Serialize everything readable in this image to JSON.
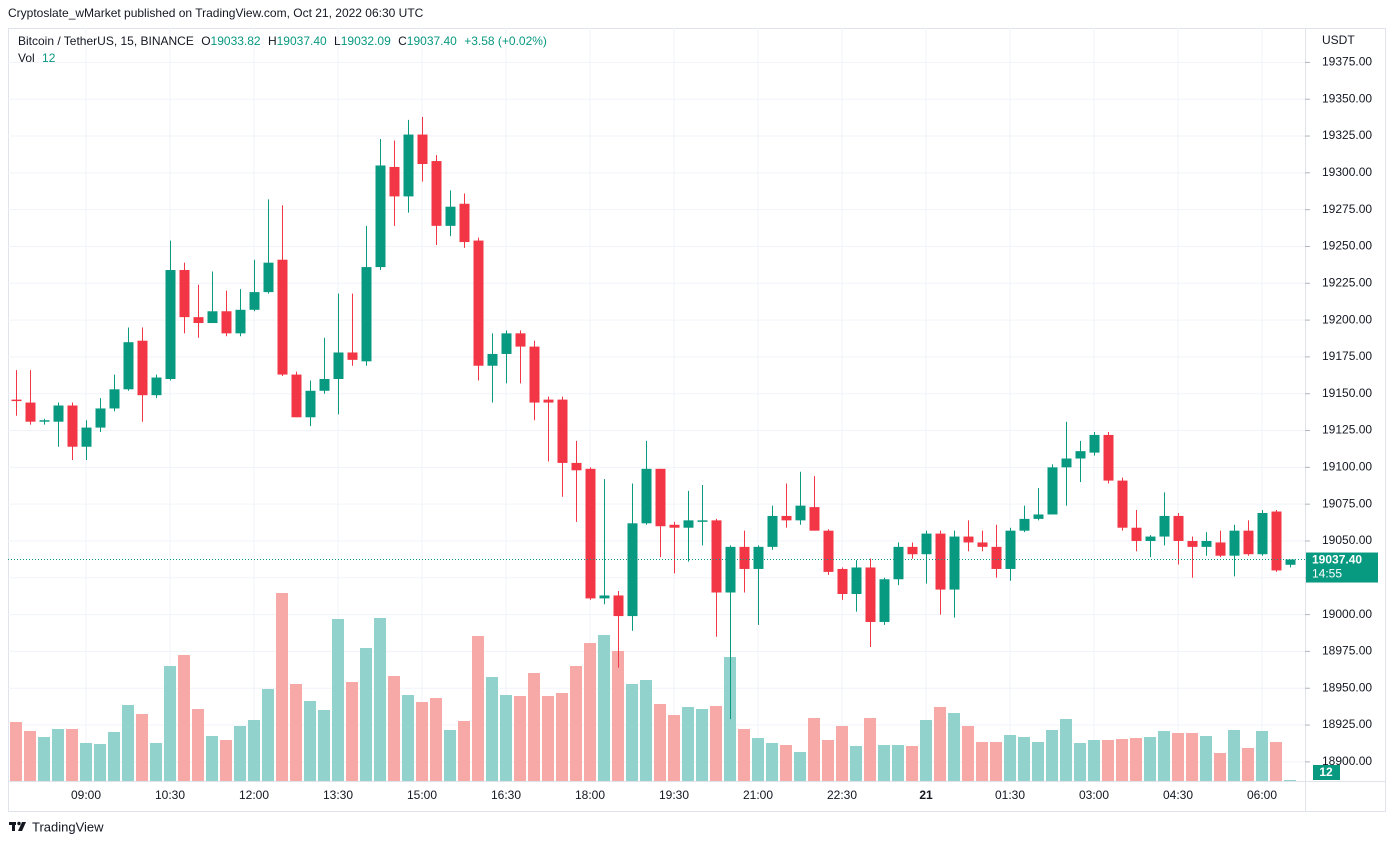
{
  "chart_data": {
    "type": "candlestick",
    "caption": "Cryptoslate_wMarket published on TradingView.com, Oct 21, 2022 06:30 UTC",
    "symbol": "Bitcoin / TetherUS, 15, BINANCE",
    "ohlc_header": [
      {
        "key": "O",
        "value_label": "19033.82"
      },
      {
        "key": "H",
        "value_label": "19037.40"
      },
      {
        "key": "L",
        "value_label": "19032.09"
      },
      {
        "key": "C",
        "value_label": "19037.40"
      }
    ],
    "change": "+3.58 (+0.02%)",
    "volume_label": "Vol",
    "currency": "USDT",
    "countdown": "14:55",
    "brand": "TradingView",
    "up_color": "#089981",
    "down_color": "#f23645",
    "volume_up_color": "#92d2cc",
    "volume_down_color": "#f7a9a7",
    "grid": true,
    "categories": [
      null,
      null,
      null,
      null,
      null,
      "09:00",
      null,
      null,
      null,
      null,
      null,
      "10:30",
      null,
      null,
      null,
      null,
      null,
      "12:00",
      null,
      null,
      null,
      null,
      null,
      "13:30",
      null,
      null,
      null,
      null,
      null,
      "15:00",
      null,
      null,
      null,
      null,
      null,
      "16:30",
      null,
      null,
      null,
      null,
      null,
      "18:00",
      null,
      null,
      null,
      null,
      null,
      "19:30",
      null,
      null,
      null,
      null,
      null,
      "21:00",
      null,
      null,
      null,
      null,
      null,
      "22:30",
      null,
      null,
      null,
      null,
      null,
      "21",
      null,
      null,
      null,
      null,
      null,
      "01:30",
      null,
      null,
      null,
      null,
      null,
      "03:00",
      null,
      null,
      null,
      null,
      null,
      "04:30",
      null,
      null,
      null,
      null,
      null,
      "06:00",
      null,
      null
    ],
    "open": [
      19146,
      19144,
      19131,
      19131,
      19142,
      19114,
      19127,
      19140,
      19153,
      19186,
      19149,
      19160,
      19234,
      19202,
      19198,
      19206,
      19191,
      19207,
      19219,
      19241,
      19163,
      19134,
      19152,
      19160,
      19178,
      19172,
      19236,
      19304,
      19284,
      19326,
      19308,
      19264,
      19279,
      19254,
      19169,
      19177,
      19191,
      19182,
      19146,
      19146,
      19103,
      19099,
      19011,
      19013,
      18999,
      19062,
      19099,
      19061,
      19059,
      19063,
      19064,
      19015,
      19046,
      19031,
      19046,
      19067,
      19064,
      19073,
      19057,
      19031,
      19014,
      19032,
      18995,
      19024,
      19046,
      19041,
      19055,
      19017,
      19053,
      19049,
      19046,
      19031,
      19057,
      19065,
      19068,
      19100,
      19106,
      19110,
      19122,
      19091,
      19059,
      19050,
      19053,
      19067,
      19050,
      19046,
      19049,
      19040,
      19057,
      19041,
      19070,
      19033.82
    ],
    "high": [
      19166,
      19166,
      19133,
      19144,
      19144,
      19132,
      19147,
      19163,
      19195,
      19195,
      19163,
      19254,
      19239,
      19224,
      19233,
      19220,
      19221,
      19241,
      19282,
      19278,
      19165,
      19159,
      19188,
      19218,
      19218,
      19264,
      19323,
      19322,
      19336,
      19338,
      19312,
      19288,
      19286,
      19256,
      19191,
      19193,
      19193,
      19186,
      19148,
      19148,
      19118,
      19100,
      19092,
      19016,
      19089,
      19118,
      19099,
      19063,
      19084,
      19088,
      19065,
      19047,
      19057,
      19047,
      19074,
      19089,
      19097,
      19094,
      19058,
      19032,
      19037,
      19038,
      19025,
      19049,
      19049,
      19057,
      19057,
      19057,
      19064,
      19057,
      19061,
      19059,
      19074,
      19086,
      19102,
      19131,
      19118,
      19124,
      19124,
      19093,
      19071,
      19054,
      19083,
      19069,
      19053,
      19056,
      19057,
      19061,
      19064,
      19071,
      19071,
      19037.4
    ],
    "low": [
      19135,
      19129,
      19129,
      19114,
      19105,
      19105,
      19124,
      19138,
      19152,
      19131,
      19147,
      19159,
      19191,
      19188,
      19198,
      19189,
      19189,
      19206,
      19218,
      19162,
      19134,
      19128,
      19150,
      19136,
      19169,
      19169,
      19234,
      19264,
      19273,
      19294,
      19251,
      19257,
      19249,
      19159,
      19144,
      19157,
      19157,
      19132,
      19104,
      19080,
      19063,
      19010,
      19007,
      18964,
      18989,
      19061,
      19039,
      19028,
      19036,
      19047,
      18985,
      18929,
      19015,
      18993,
      19044,
      19059,
      19061,
      19057,
      19027,
      19010,
      19002,
      18978,
      18993,
      19020,
      19038,
      19021,
      19000,
      18998,
      19043,
      19043,
      19025,
      19023,
      19056,
      19064,
      19068,
      19074,
      19090,
      19108,
      19089,
      19057,
      19043,
      19039,
      19047,
      19034,
      19025,
      19040,
      19039,
      19026,
      19040,
      19040,
      19029,
      19032.09
    ],
    "close": [
      19145,
      19131,
      19132,
      19142,
      19114,
      19127,
      19140,
      19153,
      19185,
      19149,
      19161,
      19234,
      19202,
      19198,
      19206,
      19191,
      19207,
      19219,
      19239,
      19163,
      19134,
      19152,
      19160,
      19178,
      19173,
      19236,
      19305,
      19284,
      19326,
      19306,
      19264,
      19277,
      19253,
      19169,
      19177,
      19191,
      19182,
      19144,
      19144,
      19103,
      19098,
      19011,
      19013,
      18999,
      19062,
      19099,
      19060,
      19059,
      19064,
      19064,
      19015,
      19046,
      19031,
      19046,
      19067,
      19064,
      19074,
      19057,
      19029,
      19014,
      19032,
      18995,
      19024,
      19046,
      19041,
      19055,
      19017,
      19053,
      19049,
      19046,
      19031,
      19057,
      19065,
      19068,
      19100,
      19106,
      19111,
      19122,
      19091,
      19059,
      19050,
      19053,
      19067,
      19050,
      19046,
      19050,
      19040,
      19057,
      19041,
      19069,
      19030,
      19037.4
    ],
    "volume": [
      708,
      600,
      528,
      624,
      624,
      456,
      444,
      588,
      912,
      804,
      456,
      1380,
      1512,
      864,
      540,
      492,
      660,
      732,
      1104,
      2256,
      1164,
      960,
      852,
      1944,
      1188,
      1596,
      1956,
      1260,
      1032,
      948,
      996,
      612,
      720,
      1740,
      1248,
      1032,
      1020,
      1296,
      1020,
      1056,
      1380,
      1656,
      1752,
      1560,
      1164,
      1212,
      924,
      792,
      888,
      864,
      900,
      1488,
      624,
      516,
      456,
      432,
      348,
      756,
      492,
      660,
      420,
      756,
      432,
      432,
      420,
      732,
      888,
      816,
      660,
      468,
      468,
      552,
      528,
      468,
      612,
      744,
      456,
      492,
      492,
      504,
      516,
      528,
      600,
      576,
      576,
      540,
      336,
      612,
      396,
      600,
      468,
      12
    ],
    "ylim": [
      18887,
      19397
    ],
    "yticks": [
      {
        "value": 18900,
        "label": "18900.00"
      },
      {
        "value": 18925,
        "label": "18925.00"
      },
      {
        "value": 18950,
        "label": "18950.00"
      },
      {
        "value": 18975,
        "label": "18975.00"
      },
      {
        "value": 19000,
        "label": "19000.00"
      },
      {
        "value": 19025,
        "label": "19025.00"
      },
      {
        "value": 19050,
        "label": "19050.00"
      },
      {
        "value": 19075,
        "label": "19075.00"
      },
      {
        "value": 19100,
        "label": "19100.00"
      },
      {
        "value": 19125,
        "label": "19125.00"
      },
      {
        "value": 19150,
        "label": "19150.00"
      },
      {
        "value": 19175,
        "label": "19175.00"
      },
      {
        "value": 19200,
        "label": "19200.00"
      },
      {
        "value": 19225,
        "label": "19225.00"
      },
      {
        "value": 19250,
        "label": "19250.00"
      },
      {
        "value": 19275,
        "label": "19275.00"
      },
      {
        "value": 19300,
        "label": "19300.00"
      },
      {
        "value": 19325,
        "label": "19325.00"
      },
      {
        "value": 19350,
        "label": "19350.00"
      },
      {
        "value": 19375,
        "label": "19375.00"
      }
    ]
  }
}
